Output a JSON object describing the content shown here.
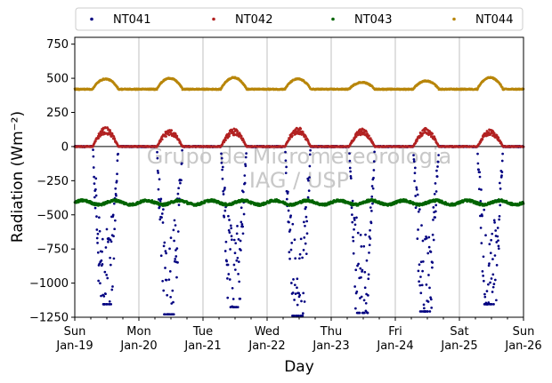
{
  "chart_data": {
    "type": "scatter",
    "xlabel": "Day",
    "ylabel": "Radiation (Wm⁻²)",
    "ylim": [
      -1250,
      800
    ],
    "yticks": [
      -1250,
      -1000,
      -750,
      -500,
      -250,
      0,
      250,
      500,
      750
    ],
    "xlim": [
      0,
      7
    ],
    "grid": "vertical gridlines at each day",
    "zero_line": true,
    "x_ticks": [
      {
        "day": 0,
        "line1": "Sun",
        "line2": "Jan-19"
      },
      {
        "day": 1,
        "line1": "Mon",
        "line2": "Jan-20"
      },
      {
        "day": 2,
        "line1": "Tue",
        "line2": "Jan-21"
      },
      {
        "day": 3,
        "line1": "Wed",
        "line2": "Jan-22"
      },
      {
        "day": 4,
        "line1": "Thu",
        "line2": "Jan-23"
      },
      {
        "day": 5,
        "line1": "Fri",
        "line2": "Jan-24"
      },
      {
        "day": 6,
        "line1": "Sat",
        "line2": "Jan-25"
      },
      {
        "day": 7,
        "line1": "Sun",
        "line2": "Jan-26"
      }
    ],
    "legend_position": "top, above plot, 4 columns",
    "watermark": [
      "Grupo de Micrometeorologia",
      "IAG / USP"
    ],
    "series": [
      {
        "name": "NT041",
        "color": "#000080",
        "description": "downward at night ~0, strongly negative during day",
        "daily_min": [
          -1100,
          -1170,
          -1120,
          -1180,
          -1160,
          -1150,
          -1100
        ],
        "night_value": 0
      },
      {
        "name": "NT042",
        "color": "#b22222",
        "night_value": 0,
        "daily_peak": [
          130,
          115,
          120,
          130,
          120,
          125,
          115
        ]
      },
      {
        "name": "NT043",
        "color": "#006400",
        "baseline": -410,
        "amplitude": 25
      },
      {
        "name": "NT044",
        "color": "#b8860b",
        "night_value": 420,
        "daily_peak": [
          495,
          500,
          505,
          495,
          470,
          480,
          505
        ]
      }
    ]
  }
}
